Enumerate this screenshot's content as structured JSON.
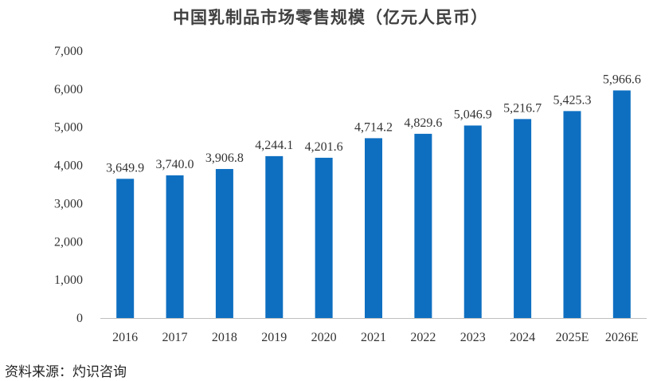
{
  "chart_data": {
    "type": "bar",
    "title": "中国乳制品市场零售规模（亿元人民币）",
    "categories": [
      "2016",
      "2017",
      "2018",
      "2019",
      "2020",
      "2021",
      "2022",
      "2023",
      "2024",
      "2025E",
      "2026E"
    ],
    "values": [
      3649.9,
      3740.0,
      3906.8,
      4244.1,
      4201.6,
      4714.2,
      4829.6,
      5046.9,
      5216.7,
      5425.3,
      5966.6
    ],
    "data_labels": [
      "3,649.9",
      "3,740.0",
      "3,906.8",
      "4,244.1",
      "4,201.6",
      "4,714.2",
      "4,829.6",
      "5,046.9",
      "5,216.7",
      "5,425.3",
      "5,966.6"
    ],
    "xlabel": "",
    "ylabel": "",
    "ylim": [
      0,
      7000
    ],
    "yticks": [
      "0",
      "1,000",
      "2,000",
      "3,000",
      "4,000",
      "5,000",
      "6,000",
      "7,000"
    ],
    "grid": false,
    "bar_color": "#0E6FC1"
  },
  "source": "资料来源：灼识咨询"
}
